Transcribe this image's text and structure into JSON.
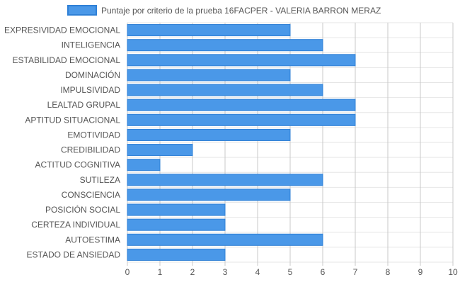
{
  "chart_data": {
    "type": "bar",
    "orientation": "horizontal",
    "categories": [
      "EXPRESIVIDAD EMOCIONAL",
      "INTELIGENCIA",
      "ESTABILIDAD EMOCIONAL",
      "DOMINACIÓN",
      "IMPULSIVIDAD",
      "LEALTAD GRUPAL",
      "APTITUD SITUACIONAL",
      "EMOTIVIDAD",
      "CREDIBILIDAD",
      "ACTITUD COGNITIVA",
      "SUTILEZA",
      "CONSCIENCIA",
      "POSICIÓN SOCIAL",
      "CERTEZA INDIVIDUAL",
      "AUTOESTIMA",
      "ESTADO DE ANSIEDAD"
    ],
    "series": [
      {
        "name": "Puntaje por criterio de la prueba 16FACPER - VALERIA BARRON MERAZ",
        "color": "#4a98e8",
        "border_color": "#2f80d6",
        "values": [
          5,
          6,
          7,
          5,
          6,
          7,
          7,
          5,
          2,
          1,
          6,
          5,
          3,
          3,
          6,
          3
        ]
      }
    ],
    "xlim": [
      0,
      10
    ],
    "x_ticks": [
      "0",
      "1",
      "2",
      "3",
      "4",
      "5",
      "6",
      "7",
      "8",
      "9",
      "10"
    ],
    "grid": true,
    "legend_position": "top",
    "grid_color_major": "#c8c8c8",
    "grid_color_minor": "#e6e6e6",
    "label_color": "#555555"
  }
}
